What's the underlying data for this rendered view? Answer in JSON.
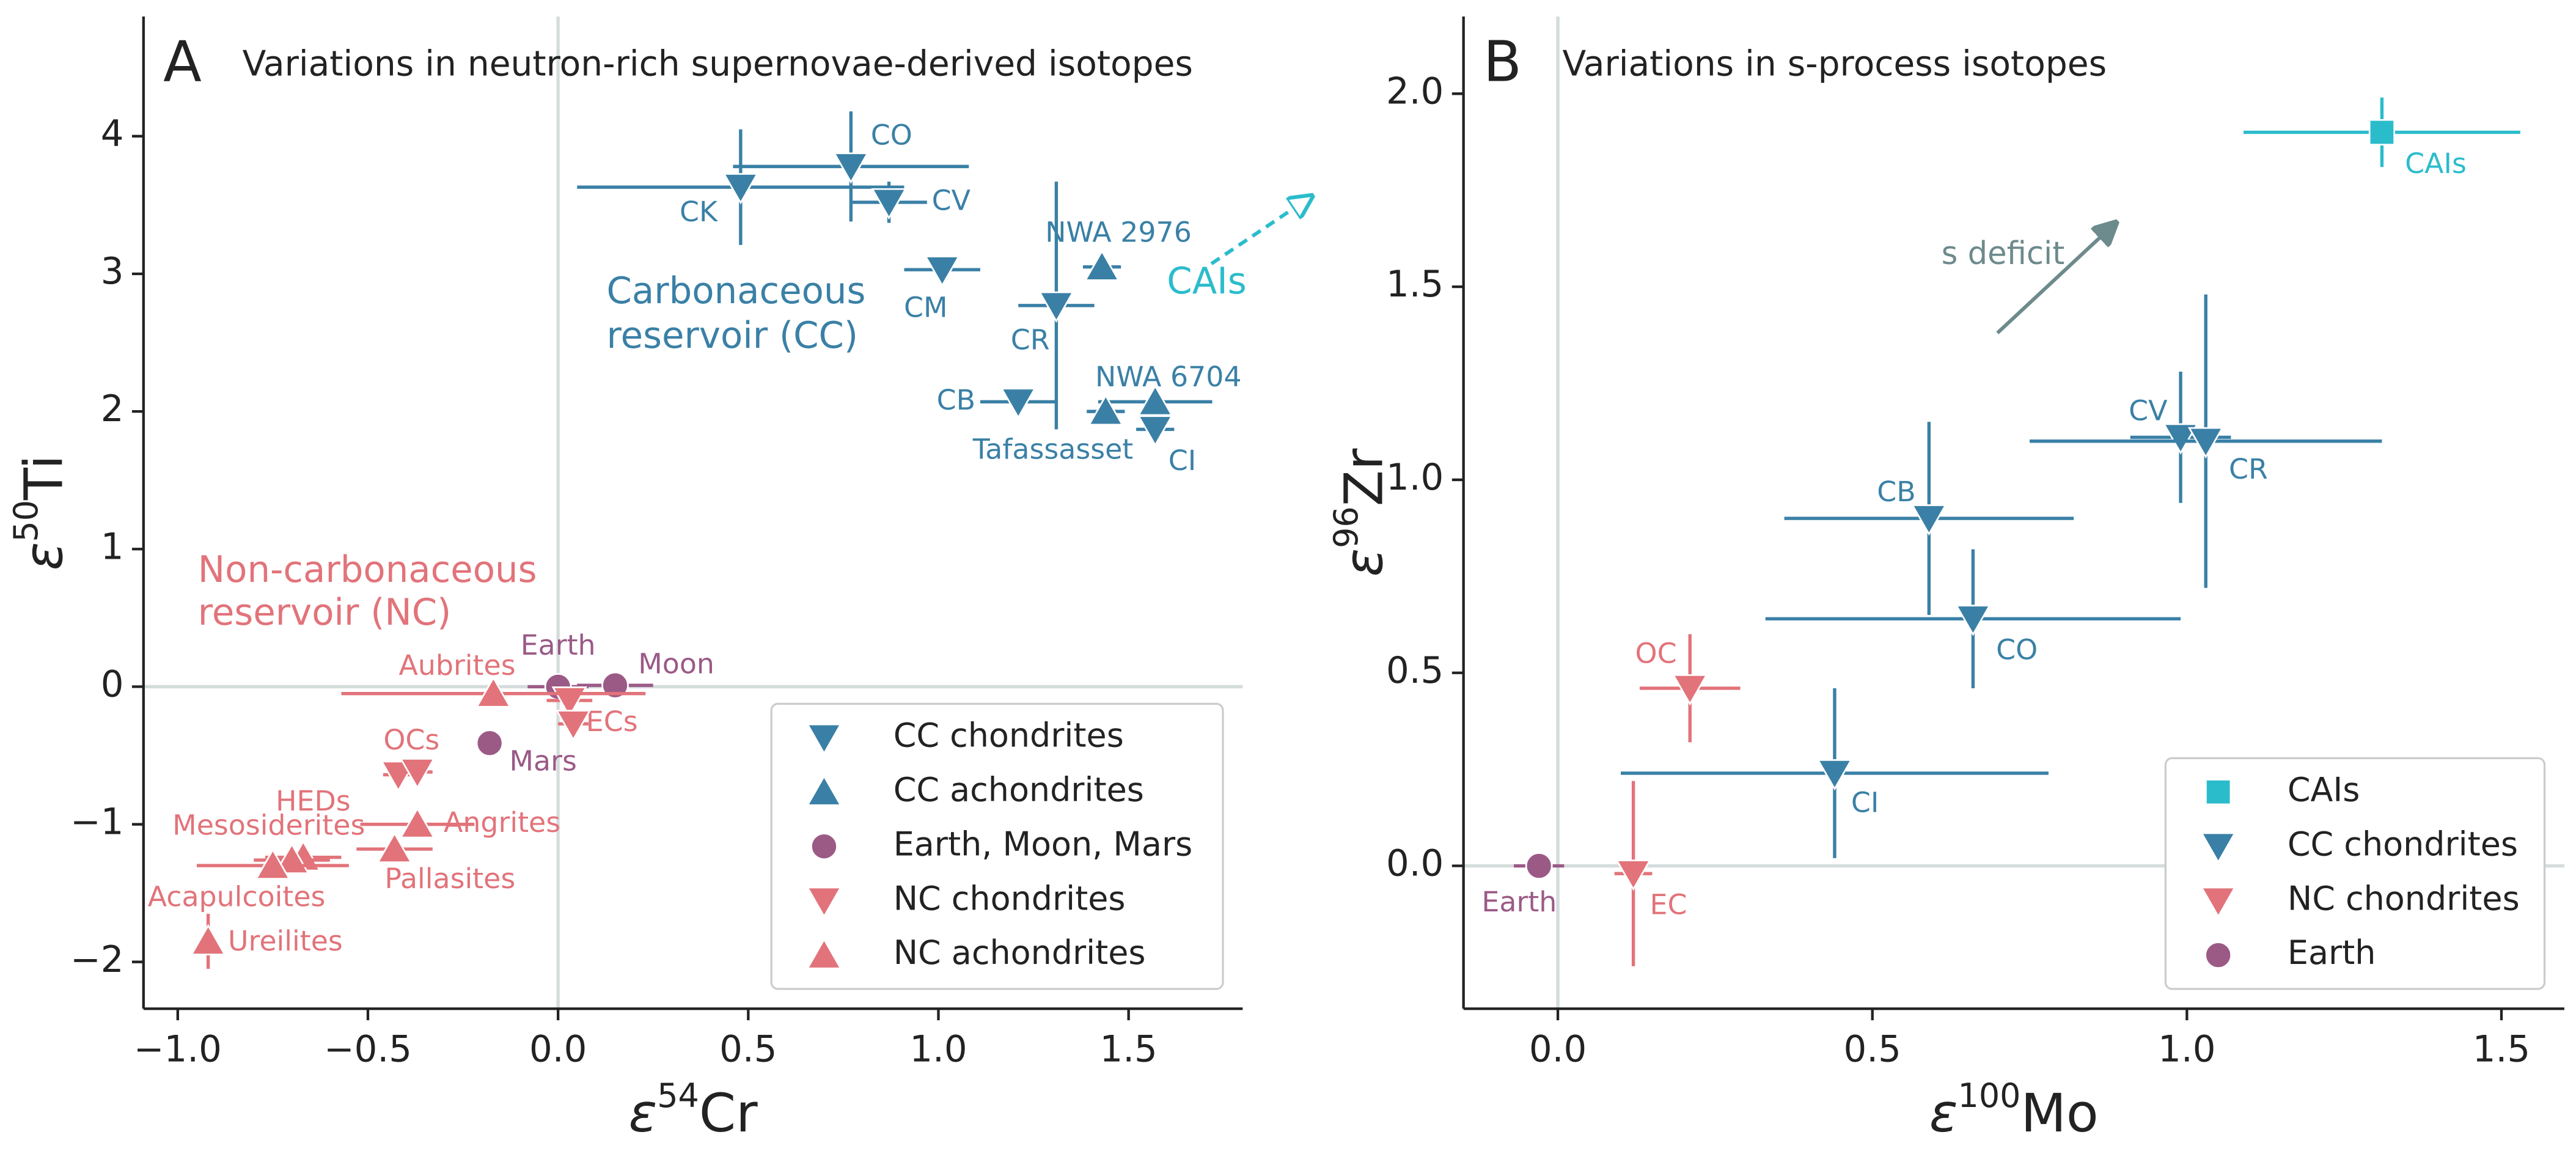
{
  "chart_data": [
    {
      "type": "scatter",
      "panel_label": "A",
      "title": "Variations in neutron-rich supernovae-derived isotopes",
      "xlabel": [
        "ε",
        "54",
        "Cr"
      ],
      "ylabel": [
        "ε",
        "50",
        "Ti"
      ],
      "xlim": [
        -1.09,
        1.8
      ],
      "ylim": [
        -2.34,
        4.87
      ],
      "xticks": [
        {
          "value": -1,
          "label": "−1.0"
        },
        {
          "value": -0.5,
          "label": "−0.5"
        },
        {
          "value": 0,
          "label": "0.0"
        },
        0.5,
        {
          "value": 1,
          "label": "1.0"
        },
        1.5
      ],
      "yticks": [
        {
          "value": -2,
          "label": "−2"
        },
        {
          "value": -1,
          "label": "−1"
        },
        0,
        1,
        2,
        3,
        4
      ],
      "legend": "lower right",
      "annotations": [
        "Carbonaceous",
        "reservoir (CC)",
        "Non-carbonaceous",
        "reservoir (NC)",
        "CAIs"
      ],
      "series": [
        {
          "name": "CC chondrites",
          "color": "#3a80a6",
          "marker": "down",
          "labels": [
            "CK",
            "CO",
            "CV",
            "CM",
            "CR",
            "CB",
            "CI"
          ],
          "x": [
            0.48,
            0.77,
            0.87,
            1.01,
            1.31,
            1.21,
            1.57
          ],
          "values": [
            3.63,
            3.78,
            3.52,
            3.03,
            2.77,
            2.07,
            1.87
          ],
          "xerr": [
            0.43,
            0.31,
            0.1,
            0.1,
            0.1,
            0.1,
            0.05
          ],
          "yerr": [
            0.42,
            0.4,
            0.15,
            0.05,
            0.9,
            0.05,
            0.08
          ]
        },
        {
          "name": "CC achondrites",
          "color": "#3a80a6",
          "marker": "up",
          "labels": [
            "NWA 2976",
            "NWA 6704",
            "Tafassasset"
          ],
          "x": [
            1.43,
            1.57,
            1.44
          ],
          "values": [
            3.05,
            2.07,
            2.0
          ],
          "xerr": [
            0.05,
            0.15,
            0.05
          ],
          "yerr": [
            0.1,
            0.1,
            0.05
          ]
        },
        {
          "name": "Earth, Moon, Mars",
          "color": "#9b5a86",
          "marker": "circle",
          "labels": [
            "Earth",
            "Moon",
            "Mars"
          ],
          "x": [
            0,
            0.15,
            -0.18
          ],
          "values": [
            0,
            0.01,
            -0.41
          ],
          "xerr": [
            0.08,
            0.1,
            0
          ],
          "yerr": [
            0,
            0,
            0
          ]
        },
        {
          "name": "NC chondrites",
          "color": "#e2737a",
          "marker": "down",
          "labels": [
            "ECs",
            null,
            "OCs",
            null
          ],
          "x": [
            0.03,
            0.04,
            -0.42,
            -0.37
          ],
          "values": [
            -0.1,
            -0.27,
            -0.64,
            -0.62
          ],
          "xerr": [
            0.06,
            0.04,
            0.04,
            0.04
          ],
          "yerr": [
            0.08,
            0.08,
            0.05,
            0.05
          ]
        },
        {
          "name": "NC achondrites",
          "color": "#e2737a",
          "marker": "up",
          "labels": [
            "Aubrites",
            "Angrites",
            "HEDs",
            "Mesosiderites",
            "Pallasites",
            "Acapulcoites",
            "Ureilites"
          ],
          "x": [
            -0.17,
            -0.37,
            -0.67,
            -0.7,
            -0.43,
            -0.75,
            -0.92
          ],
          "values": [
            -0.05,
            -1.0,
            -1.24,
            -1.26,
            -1.18,
            -1.3,
            -1.85
          ],
          "xerr": [
            0.4,
            0.15,
            0.1,
            0.1,
            0.1,
            0.2,
            0.02
          ],
          "yerr": [
            0.05,
            0.05,
            0.05,
            0.05,
            0.05,
            0.05,
            0.2
          ]
        }
      ]
    },
    {
      "type": "scatter",
      "panel_label": "B",
      "title": "Variations in s-process isotopes",
      "xlabel": [
        "ε",
        "100",
        "Mo"
      ],
      "ylabel": [
        "ε",
        "96",
        "Zr"
      ],
      "xlim": [
        -0.15,
        1.6
      ],
      "ylim": [
        -0.37,
        2.2
      ],
      "xticks": [
        {
          "value": 0,
          "label": "0.0"
        },
        0.5,
        {
          "value": 1,
          "label": "1.0"
        },
        1.5
      ],
      "yticks": [
        {
          "value": 0,
          "label": "0.0"
        },
        0.5,
        {
          "value": 1,
          "label": "1.0"
        },
        1.5,
        {
          "value": 2,
          "label": "2.0"
        }
      ],
      "legend": "lower right",
      "annotations": [
        "s deficit"
      ],
      "series": [
        {
          "name": "CAIs",
          "color": "#2bbccc",
          "marker": "square",
          "labels": [
            "CAIs"
          ],
          "x": [
            1.31
          ],
          "values": [
            1.9
          ],
          "xerr": [
            0.22
          ],
          "yerr": [
            0.09
          ]
        },
        {
          "name": "CC chondrites",
          "color": "#3a80a6",
          "marker": "down",
          "labels": [
            "CV",
            "CR",
            "CB",
            "CO",
            "CI"
          ],
          "x": [
            0.99,
            1.03,
            0.59,
            0.66,
            0.44
          ],
          "values": [
            1.11,
            1.1,
            0.9,
            0.64,
            0.24
          ],
          "xerr": [
            0.08,
            0.28,
            0.23,
            0.33,
            0.34
          ],
          "yerr": [
            0.17,
            0.38,
            0.25,
            0.18,
            0.22
          ]
        },
        {
          "name": "NC chondrites",
          "color": "#e2737a",
          "marker": "down",
          "labels": [
            "OC",
            "EC"
          ],
          "x": [
            0.21,
            0.12
          ],
          "values": [
            0.46,
            -0.02
          ],
          "xerr": [
            0.08,
            0.03
          ],
          "yerr": [
            0.14,
            0.24
          ]
        },
        {
          "name": "Earth",
          "color": "#9b5a86",
          "marker": "circle",
          "labels": [
            "Earth"
          ],
          "x": [
            -0.03
          ],
          "values": [
            0
          ],
          "xerr": [
            0.04
          ],
          "yerr": [
            0
          ]
        }
      ]
    }
  ]
}
